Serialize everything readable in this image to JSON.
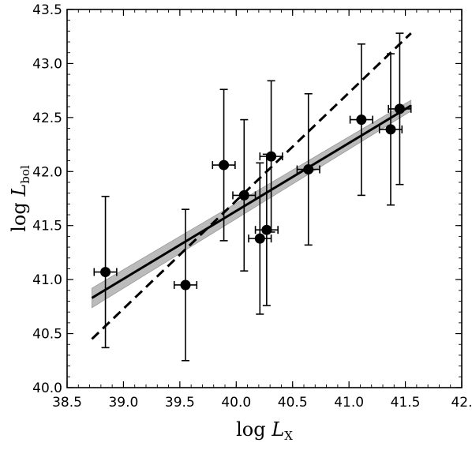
{
  "chart_data": {
    "type": "scatter",
    "xlabel": {
      "base": "log ",
      "symbol": "L",
      "subscript": "X"
    },
    "ylabel": {
      "base": "log ",
      "symbol": "L",
      "subscript": "bol"
    },
    "xlim": [
      38.5,
      42.0
    ],
    "ylim": [
      40.0,
      43.5
    ],
    "x_ticks": [
      38.5,
      39.0,
      39.5,
      40.0,
      40.5,
      41.0,
      41.5,
      42.0
    ],
    "x_tick_labels": [
      "38.5",
      "39.0",
      "39.5",
      "40.0",
      "40.5",
      "41.0",
      "41.5",
      "42."
    ],
    "y_ticks": [
      40.0,
      40.5,
      41.0,
      41.5,
      42.0,
      42.5,
      43.0,
      43.5
    ],
    "y_tick_labels": [
      "40.0",
      "40.5",
      "41.0",
      "41.5",
      "42.0",
      "42.5",
      "43.0",
      "43.5"
    ],
    "grid": false,
    "points": [
      {
        "x": 38.84,
        "y": 41.07,
        "xerr": 0.1,
        "yerr": 0.7
      },
      {
        "x": 39.55,
        "y": 40.95,
        "xerr": 0.1,
        "yerr": 0.7
      },
      {
        "x": 39.89,
        "y": 42.06,
        "xerr": 0.1,
        "yerr": 0.7
      },
      {
        "x": 40.07,
        "y": 41.78,
        "xerr": 0.1,
        "yerr": 0.7
      },
      {
        "x": 40.21,
        "y": 41.38,
        "xerr": 0.1,
        "yerr": 0.7
      },
      {
        "x": 40.27,
        "y": 41.46,
        "xerr": 0.1,
        "yerr": 0.7
      },
      {
        "x": 40.31,
        "y": 42.14,
        "xerr": 0.1,
        "yerr": 0.7
      },
      {
        "x": 40.64,
        "y": 42.02,
        "xerr": 0.1,
        "yerr": 0.7
      },
      {
        "x": 41.11,
        "y": 42.48,
        "xerr": 0.1,
        "yerr": 0.7
      },
      {
        "x": 41.37,
        "y": 42.39,
        "xerr": 0.1,
        "yerr": 0.7
      },
      {
        "x": 41.45,
        "y": 42.58,
        "xerr": 0.1,
        "yerr": 0.7
      }
    ],
    "fit_line": {
      "x": [
        38.72,
        41.55
      ],
      "y": [
        40.83,
        42.61
      ],
      "style": "solid",
      "color": "#000000"
    },
    "fit_band": {
      "x": [
        38.72,
        41.55
      ],
      "y_lower": [
        40.74,
        42.56
      ],
      "y_upper": [
        40.92,
        42.66
      ],
      "color": "#bbbbbb"
    },
    "reference_line": {
      "x": [
        38.72,
        41.55
      ],
      "y": [
        40.45,
        43.28
      ],
      "style": "dashed",
      "color": "#000000"
    }
  }
}
